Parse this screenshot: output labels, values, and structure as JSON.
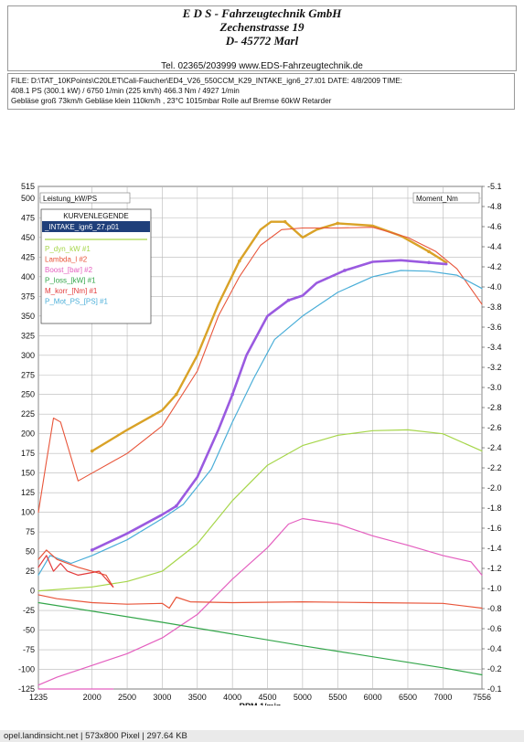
{
  "header": {
    "company": "E D S - Fahrzeugtechnik GmbH",
    "street": "Zechenstrasse 19",
    "city": "D- 45772 Marl",
    "contact": "Tel. 02365/203999     www.EDS-Fahrzeugtechnik.de"
  },
  "info": {
    "line1": "FILE: D:\\TAT_10KPoints\\C20LET\\Cali-Faucher\\ED4_V26_550CCM_K29_INTAKE_ign6_27.t01  DATE: 4/8/2009  TIME:",
    "line2": "408.1 PS  (300.1 kW) / 6750 1/min (225 km/h)    466.3 Nm / 4927 1/min",
    "line3": "Gebläse groß 73km/h Gebläse klein 110km/h    , 23°C 1015mbar  Rolle auf Bremse 60kW Retarder"
  },
  "footer": "opel.landinsicht.net | 573x800 Pixel | 297.64 KB",
  "chart_data": {
    "type": "line",
    "left_axis_label": "Leistung_kW/PS",
    "right_axis_label": "Moment_Nm",
    "xlabel": "RPM  1/min",
    "x_ticks": [
      "1235",
      "2000",
      "2500",
      "3000",
      "3500",
      "4000",
      "4500",
      "5000",
      "5500",
      "6000",
      "6500",
      "7000",
      "7556"
    ],
    "xlim": [
      1235,
      7556
    ],
    "left_ticks": [
      "515",
      "500",
      "475",
      "450",
      "425",
      "400",
      "375",
      "350",
      "325",
      "300",
      "275",
      "250",
      "225",
      "200",
      "175",
      "150",
      "125",
      "100",
      "75",
      "50",
      "25",
      "0",
      "-25",
      "-50",
      "-75",
      "-100",
      "-125"
    ],
    "ylim_left": [
      -125,
      515
    ],
    "right_ticks": [
      "-5.1",
      "-4.8",
      "-4.6",
      "-4.4",
      "-4.2",
      "-4.0",
      "-3.8",
      "-3.6",
      "-3.4",
      "-3.2",
      "-3.0",
      "-2.8",
      "-2.6",
      "-2.4",
      "-2.2",
      "-2.0",
      "-1.8",
      "-1.6",
      "-1.4",
      "-1.2",
      "-1.0",
      "-0.8",
      "-0.6",
      "-0.4",
      "-0.2",
      "-0.1"
    ],
    "legend": {
      "title": "KURVENLEGENDE",
      "file": "_INTAKE_ign6_27.p01",
      "entries": [
        {
          "name": "P_dyn_kW #1",
          "color": "#a6d64a"
        },
        {
          "name": "Lambda_l #2",
          "color": "#e8553a"
        },
        {
          "name": "Boost_[bar] #2",
          "color": "#e45fbf"
        },
        {
          "name": "P_loss_[kW] #1",
          "color": "#33a64a"
        },
        {
          "name": "M_korr_[Nm] #1",
          "color": "#e23a3a"
        },
        {
          "name": "P_Mot_PS_[PS] #1",
          "color": "#4aaed8"
        }
      ]
    },
    "series": [
      {
        "color": "#d9a227",
        "width": 2.4,
        "points": [
          [
            2000,
            178
          ],
          [
            2500,
            205
          ],
          [
            3000,
            230
          ],
          [
            3200,
            250
          ],
          [
            3500,
            300
          ],
          [
            3800,
            365
          ],
          [
            4100,
            420
          ],
          [
            4400,
            460
          ],
          [
            4550,
            470
          ],
          [
            4750,
            470
          ],
          [
            5000,
            450
          ],
          [
            5200,
            460
          ],
          [
            5500,
            468
          ],
          [
            6000,
            465
          ],
          [
            6400,
            452
          ],
          [
            6800,
            432
          ],
          [
            7050,
            418
          ]
        ]
      },
      {
        "color": "#e8553a",
        "width": 1.1,
        "points": [
          [
            1235,
            100
          ],
          [
            1350,
            165
          ],
          [
            1450,
            220
          ],
          [
            1550,
            215
          ],
          [
            1700,
            170
          ],
          [
            1800,
            140
          ],
          [
            2000,
            150
          ],
          [
            2500,
            175
          ],
          [
            3000,
            210
          ],
          [
            3500,
            280
          ],
          [
            3800,
            350
          ],
          [
            4100,
            400
          ],
          [
            4400,
            440
          ],
          [
            4700,
            460
          ],
          [
            5000,
            462
          ],
          [
            5500,
            462
          ],
          [
            6000,
            463
          ],
          [
            6500,
            450
          ],
          [
            6900,
            432
          ],
          [
            7200,
            410
          ],
          [
            7556,
            365
          ]
        ]
      },
      {
        "color": "#9a5ae0",
        "width": 2.6,
        "points": [
          [
            2000,
            52
          ],
          [
            2500,
            73
          ],
          [
            3000,
            97
          ],
          [
            3200,
            108
          ],
          [
            3500,
            145
          ],
          [
            3800,
            205
          ],
          [
            4000,
            250
          ],
          [
            4200,
            300
          ],
          [
            4500,
            350
          ],
          [
            4800,
            370
          ],
          [
            5000,
            376
          ],
          [
            5200,
            392
          ],
          [
            5600,
            408
          ],
          [
            6000,
            419
          ],
          [
            6400,
            421
          ],
          [
            6800,
            418
          ],
          [
            7050,
            416
          ]
        ]
      },
      {
        "color": "#4aaed8",
        "width": 1.2,
        "points": [
          [
            1235,
            20
          ],
          [
            1400,
            45
          ],
          [
            1700,
            35
          ],
          [
            2000,
            45
          ],
          [
            2500,
            65
          ],
          [
            3000,
            92
          ],
          [
            3300,
            110
          ],
          [
            3700,
            155
          ],
          [
            4000,
            215
          ],
          [
            4300,
            270
          ],
          [
            4600,
            320
          ],
          [
            5000,
            350
          ],
          [
            5500,
            380
          ],
          [
            6000,
            400
          ],
          [
            6400,
            408
          ],
          [
            6800,
            407
          ],
          [
            7200,
            402
          ],
          [
            7556,
            385
          ]
        ]
      },
      {
        "color": "#a6d64a",
        "width": 1.2,
        "points": [
          [
            1235,
            0
          ],
          [
            2000,
            5
          ],
          [
            2500,
            12
          ],
          [
            3000,
            25
          ],
          [
            3500,
            60
          ],
          [
            4000,
            115
          ],
          [
            4500,
            160
          ],
          [
            5000,
            185
          ],
          [
            5500,
            198
          ],
          [
            6000,
            204
          ],
          [
            6500,
            205
          ],
          [
            7000,
            200
          ],
          [
            7556,
            178
          ]
        ]
      },
      {
        "color": "#e45fbf",
        "width": 1.2,
        "points": [
          [
            1235,
            -120
          ],
          [
            1500,
            -110
          ],
          [
            2000,
            -95
          ],
          [
            2500,
            -80
          ],
          [
            3000,
            -60
          ],
          [
            3500,
            -30
          ],
          [
            4000,
            15
          ],
          [
            4500,
            55
          ],
          [
            4800,
            85
          ],
          [
            5000,
            92
          ],
          [
            5500,
            85
          ],
          [
            6000,
            70
          ],
          [
            6500,
            58
          ],
          [
            7000,
            45
          ],
          [
            7400,
            37
          ],
          [
            7556,
            20
          ]
        ]
      },
      {
        "color": "#e45fbf",
        "width": 1.2,
        "points": [
          [
            1235,
            -125
          ],
          [
            2300,
            -125
          ]
        ]
      },
      {
        "color": "#e8553a",
        "width": 1.2,
        "points": [
          [
            1235,
            -5
          ],
          [
            1500,
            -10
          ],
          [
            2000,
            -15
          ],
          [
            2500,
            -17
          ],
          [
            3000,
            -16
          ],
          [
            3100,
            -22
          ],
          [
            3200,
            -8
          ],
          [
            3400,
            -14
          ],
          [
            4000,
            -15
          ],
          [
            5000,
            -14
          ],
          [
            6000,
            -15
          ],
          [
            7000,
            -16
          ],
          [
            7556,
            -22
          ]
        ]
      },
      {
        "color": "#e8553a",
        "width": 1.2,
        "points": [
          [
            1235,
            40
          ],
          [
            1350,
            52
          ],
          [
            1500,
            40
          ],
          [
            1800,
            30
          ],
          [
            2200,
            20
          ],
          [
            2300,
            5
          ]
        ]
      },
      {
        "color": "#e23a3a",
        "width": 1.2,
        "points": [
          [
            1235,
            30
          ],
          [
            1350,
            45
          ],
          [
            1450,
            25
          ],
          [
            1550,
            35
          ],
          [
            1650,
            25
          ],
          [
            1800,
            20
          ],
          [
            2100,
            25
          ],
          [
            2300,
            5
          ]
        ]
      },
      {
        "color": "#33a64a",
        "width": 1.2,
        "points": [
          [
            1235,
            -15
          ],
          [
            3000,
            -40
          ],
          [
            5000,
            -70
          ],
          [
            7000,
            -98
          ],
          [
            7556,
            -107
          ]
        ]
      }
    ]
  }
}
